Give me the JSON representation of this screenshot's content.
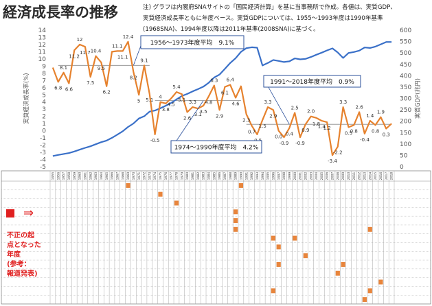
{
  "header": {
    "title": "経済成長率の推移",
    "note_lines": [
      "注) グラフは内閣府SNAサイトの「国民経済計算」を基に当事務所で作成。各値は、実質GDP、",
      "実質経済成長率ともに年度ベース。実質GDPについては、1955～1993年度は1990年基準",
      "(1968SNA)、1994年度以降は2011年基準(2008SNA)に基づく。"
    ]
  },
  "colors": {
    "growth": "#e6822e",
    "gdp": "#3a70c8",
    "marker": "#e8853c",
    "highlight": "#e02020"
  },
  "legend_panel": {
    "arrow": "⇒",
    "label_lines": [
      "不正の起",
      "点となった",
      "年度",
      "(参考：",
      "報道発表)"
    ]
  },
  "chart_data": {
    "type": "line",
    "title": "",
    "x": [
      1955,
      1956,
      1957,
      1958,
      1959,
      1960,
      1961,
      1962,
      1963,
      1964,
      1965,
      1966,
      1967,
      1968,
      1969,
      1970,
      1971,
      1972,
      1973,
      1974,
      1975,
      1976,
      1977,
      1978,
      1979,
      1980,
      1981,
      1982,
      1983,
      1984,
      1985,
      1986,
      1987,
      1988,
      1989,
      1990,
      1991,
      1992,
      1993,
      1994,
      1995,
      1996,
      1997,
      1998,
      1999,
      2000,
      2001,
      2002,
      2003,
      2004,
      2005,
      2006,
      2007,
      2008,
      2009,
      2010,
      2011,
      2012,
      2013,
      2014,
      2015,
      2016,
      2017,
      2018
    ],
    "ylabel_left": "実質経済成長率(%)",
    "ylabel_right": "実質GDP(兆円)",
    "ylim_left": [
      -5,
      14
    ],
    "ylim_right": [
      0,
      600
    ],
    "yticks_left": [
      -5,
      -4,
      -3,
      -2,
      -1,
      0,
      1,
      2,
      3,
      4,
      5,
      6,
      7,
      8,
      9,
      10,
      11,
      12,
      13,
      14
    ],
    "yticks_right": [
      0,
      50,
      100,
      150,
      200,
      250,
      300,
      350,
      400,
      450,
      500,
      550,
      600
    ],
    "series": [
      {
        "name": "実質経済成長率",
        "axis": "left",
        "values": [
          8.8,
          6.8,
          8.1,
          6.6,
          11.2,
          12.0,
          11.7,
          7.5,
          10.4,
          9.5,
          6.2,
          11.0,
          11.1,
          11.1,
          12.4,
          8.2,
          5.0,
          9.1,
          5.1,
          -0.5,
          4.0,
          3.8,
          4.5,
          5.4,
          5.1,
          2.6,
          3.3,
          3.1,
          3.5,
          4.8,
          6.3,
          2.9,
          6.1,
          6.4,
          4.6,
          6.2,
          2.3,
          0.7,
          -0.5,
          1.5,
          3.3,
          2.9,
          0.0,
          -0.9,
          0.4,
          2.5,
          -0.9,
          0.9,
          2.0,
          1.8,
          1.4,
          1.2,
          -3.4,
          -2.2,
          3.3,
          0.5,
          0.8,
          2.6,
          -0.4,
          1.4,
          0.8,
          1.9,
          0.3,
          1.0
        ],
        "data_labels": [
          "",
          "6.8",
          "8.1",
          "6.6",
          "11.2",
          "12",
          "11.7",
          "7.5",
          "10.4",
          "9.5",
          "6.2",
          "",
          "11.1",
          "11.1",
          "12.4",
          "8.2",
          "5",
          "9.1",
          "5.1",
          "-0.5",
          "4",
          "3.8",
          "4.5",
          "5.4",
          "5.1",
          "2.6",
          "3.3",
          "3.1",
          "3.5",
          "4.8",
          "6.3",
          "2.9",
          "6.1",
          "6.4",
          "4.6",
          "",
          "2.3",
          "0.7",
          "-0.5",
          "1.5",
          "3.3",
          "2.9",
          "0.0",
          "-0.9",
          "0.4",
          "2.5",
          "-0.9",
          "0.9",
          "2.0",
          "1.8",
          "1.4",
          "1.2",
          "-3.4",
          "-2.2",
          "3.3",
          "0.5",
          "0.8",
          "2.6",
          "-0.4",
          "1.4",
          "0.8",
          "1.9",
          "0.3",
          ""
        ]
      },
      {
        "name": "実質GDP",
        "axis": "right",
        "values": [
          47,
          52,
          56,
          60,
          67,
          75,
          83,
          90,
          99,
          108,
          115,
          127,
          141,
          156,
          175,
          190,
          212,
          222,
          242,
          247,
          257,
          268,
          280,
          296,
          311,
          320,
          331,
          341,
          352,
          369,
          392,
          405,
          430,
          456,
          477,
          505,
          521,
          525,
          523,
          445,
          456,
          469,
          465,
          460,
          463,
          476,
          472,
          474,
          482,
          492,
          501,
          511,
          520,
          502,
          478,
          500,
          504,
          510,
          524,
          522,
          528,
          538,
          548,
          548
        ]
      }
    ],
    "annotations": [
      {
        "text": "1956～1973年度平均　9.1%",
        "from": 1956,
        "to": 1973,
        "level": 9.1
      },
      {
        "text": "1974～1990年度平均　4.2%",
        "from": 1974,
        "to": 1990,
        "level": 4.2
      },
      {
        "text": "1991～2018年度平均　0.9%",
        "from": 1991,
        "to": 2018,
        "level": 0.9
      }
    ],
    "fraud_markers": [
      {
        "year": 1969,
        "row": 0
      },
      {
        "year": 1975,
        "row": 1
      },
      {
        "year": 1978,
        "row": 2
      },
      {
        "year": 1989,
        "row": 3
      },
      {
        "year": 1989,
        "row": 4
      },
      {
        "year": 1989,
        "row": 5
      },
      {
        "year": 1990,
        "row": 0
      },
      {
        "year": 1996,
        "row": 6
      },
      {
        "year": 1997,
        "row": 7
      },
      {
        "year": 2000,
        "row": 6
      },
      {
        "year": 1997,
        "row": 9
      },
      {
        "year": 2002,
        "row": 8
      },
      {
        "year": 2008,
        "row": 10
      },
      {
        "year": 2009,
        "row": 9
      },
      {
        "year": 2014,
        "row": 5
      },
      {
        "year": 1996,
        "row": 12
      },
      {
        "year": 2013,
        "row": 13
      },
      {
        "year": 2014,
        "row": 12
      },
      {
        "year": 2016,
        "row": 11
      }
    ]
  }
}
